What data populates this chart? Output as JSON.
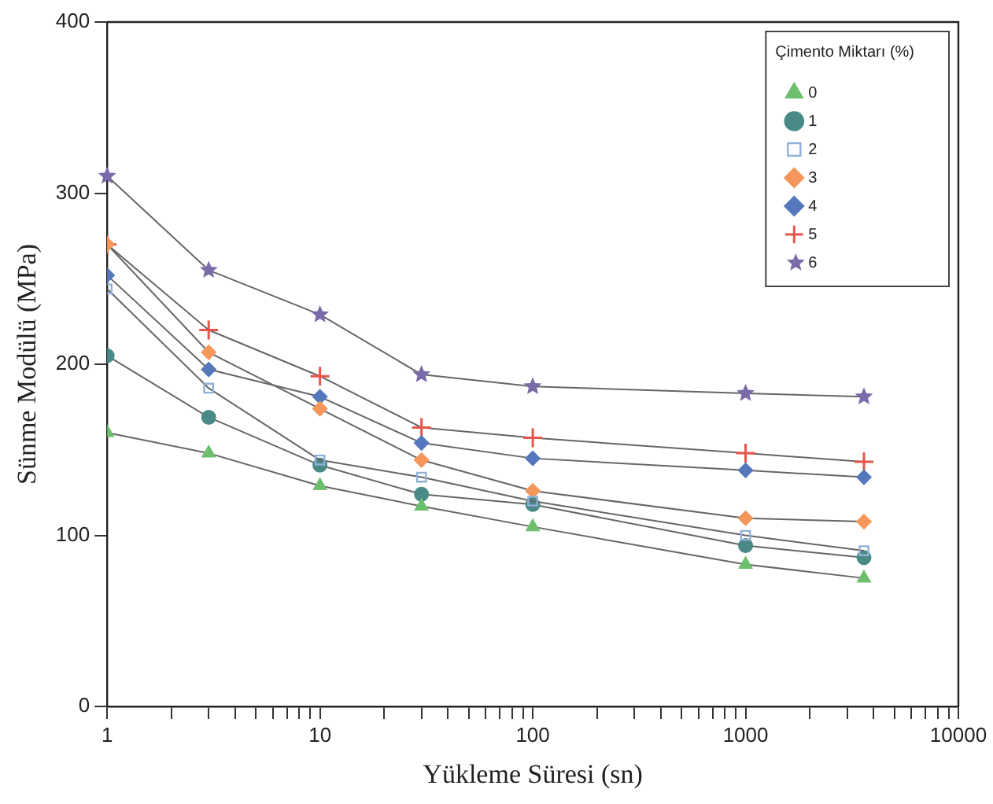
{
  "chart_data": {
    "type": "line",
    "xlabel": "Yükleme Süresi (sn)",
    "ylabel": "Sünme Modülü (MPa)",
    "legend_title": "Çimento Miktarı (%)",
    "legend": "top right",
    "grid": false,
    "log": "x",
    "x": [
      1,
      3,
      10,
      30,
      100,
      1000,
      3600
    ],
    "xlim": [
      1,
      10000
    ],
    "xticks": [
      1,
      {
        "value": 2,
        "label": null
      },
      {
        "value": 3,
        "label": null
      },
      {
        "value": 4,
        "label": null
      },
      {
        "value": 5,
        "label": null
      },
      {
        "value": 6,
        "label": null
      },
      {
        "value": 7,
        "label": null
      },
      {
        "value": 8,
        "label": null
      },
      {
        "value": 9,
        "label": null
      },
      10,
      {
        "value": 20,
        "label": null
      },
      {
        "value": 30,
        "label": null
      },
      {
        "value": 40,
        "label": null
      },
      {
        "value": 50,
        "label": null
      },
      {
        "value": 60,
        "label": null
      },
      {
        "value": 70,
        "label": null
      },
      {
        "value": 80,
        "label": null
      },
      {
        "value": 90,
        "label": null
      },
      100,
      {
        "value": 200,
        "label": null
      },
      {
        "value": 300,
        "label": null
      },
      {
        "value": 400,
        "label": null
      },
      {
        "value": 500,
        "label": null
      },
      {
        "value": 600,
        "label": null
      },
      {
        "value": 700,
        "label": null
      },
      {
        "value": 800,
        "label": null
      },
      {
        "value": 900,
        "label": null
      },
      1000,
      {
        "value": 2000,
        "label": null
      },
      {
        "value": 3000,
        "label": null
      },
      {
        "value": 4000,
        "label": null
      },
      {
        "value": 5000,
        "label": null
      },
      {
        "value": 6000,
        "label": null
      },
      {
        "value": 7000,
        "label": null
      },
      {
        "value": 8000,
        "label": null
      },
      {
        "value": 9000,
        "label": null
      },
      10000
    ],
    "ylim": [
      0,
      400
    ],
    "yticks": [
      0,
      100,
      200,
      300,
      400
    ],
    "series": [
      {
        "name": "0",
        "color": "#6dbf6d",
        "marker": "triangle",
        "values": [
          160,
          148,
          129,
          117,
          105,
          83,
          75
        ]
      },
      {
        "name": "1",
        "color": "#4a8a86",
        "marker": "circle",
        "values": [
          205,
          169,
          141,
          124,
          118,
          94,
          87
        ]
      },
      {
        "name": "2",
        "color": "#8fb0d8",
        "marker": "square",
        "values": [
          244,
          186,
          144,
          134,
          120,
          100,
          91
        ]
      },
      {
        "name": "3",
        "color": "#f5965a",
        "marker": "diamond",
        "values": [
          270,
          207,
          174,
          144,
          126,
          110,
          108
        ]
      },
      {
        "name": "4",
        "color": "#5577bb",
        "marker": "diamond",
        "values": [
          252,
          197,
          181,
          154,
          145,
          138,
          134
        ]
      },
      {
        "name": "5",
        "color": "#e8554a",
        "marker": "cross",
        "values": [
          270,
          220,
          193,
          163,
          157,
          148,
          143
        ]
      },
      {
        "name": "6",
        "color": "#7a6aa8",
        "marker": "star",
        "values": [
          310,
          255,
          229,
          194,
          187,
          183,
          181
        ]
      }
    ]
  }
}
